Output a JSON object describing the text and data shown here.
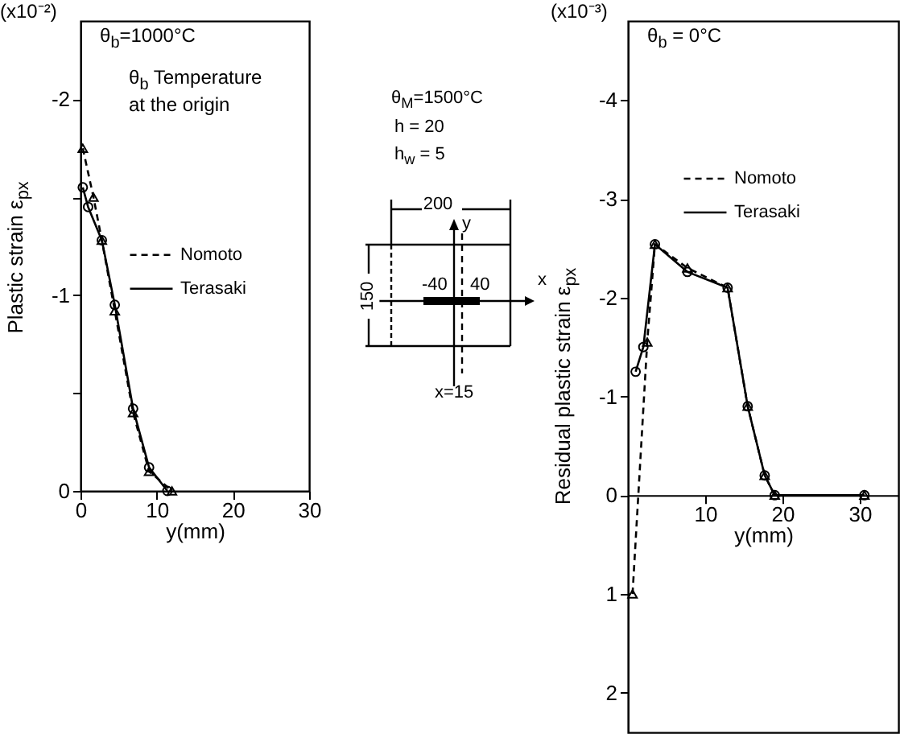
{
  "chart_data": [
    {
      "type": "line",
      "xlabel": "y(mm)",
      "ylabel": "Plastic strain ε$_{px}$",
      "annotations": [
        "(x10⁻²)",
        "θ$_{b}$=1000°C",
        "θ$_{b}$ Temperature at the origin"
      ],
      "xlim": [
        0,
        30
      ],
      "xticks": [
        0,
        10,
        20,
        30
      ],
      "ylim": [
        0,
        -2.4
      ],
      "yticks": [
        {
          "value": 0,
          "label": "0"
        },
        {
          "value": -0.5,
          "label": null
        },
        {
          "value": -1,
          "label": "-1"
        },
        {
          "value": -1.5,
          "label": null
        },
        {
          "value": -2,
          "label": "-2"
        }
      ],
      "grid": false,
      "legend": "right",
      "series": [
        {
          "name": "Nomoto",
          "color": "#000000",
          "line_style": "dashed",
          "marker": "triangle",
          "x": [
            0.3,
            1.7,
            2.8,
            4.5,
            6.9,
            9,
            12
          ],
          "values": [
            -1.75,
            -1.5,
            -1.28,
            -0.92,
            -0.4,
            -0.1,
            0
          ]
        },
        {
          "name": "Terasaki",
          "color": "#000000",
          "line_style": "solid",
          "marker": "circle",
          "x": [
            0.3,
            1,
            2.8,
            4.5,
            6.9,
            9,
            11.4
          ],
          "values": [
            -1.55,
            -1.45,
            -1.28,
            -0.95,
            -0.42,
            -0.12,
            0
          ]
        }
      ]
    },
    {
      "type": "other",
      "annotations": [
        "θ$_{M}$=1500°C",
        "h = 20",
        "h$_{w}$ = 5",
        "200",
        "150",
        "-40",
        "40",
        "x",
        "y",
        "x=15"
      ]
    },
    {
      "type": "line",
      "xlabel": "y(mm)",
      "ylabel": "Residual plastic strain ε$_{px}$",
      "annotations": [
        "(x10⁻³)",
        "θ$_{b}$ = 0°C"
      ],
      "xlim": [
        0,
        35
      ],
      "xticks": [
        10,
        20,
        30
      ],
      "ylim": [
        2.4,
        -4.8
      ],
      "yticks": [
        2,
        1,
        0,
        -1,
        -2,
        -3,
        -4
      ],
      "grid": false,
      "legend": "top",
      "series": [
        {
          "name": "Nomoto",
          "color": "#000000",
          "line_style": "dashed",
          "marker": "triangle",
          "x": [
            0.6,
            2.5,
            3.5,
            7.7,
            12.9,
            15.5,
            17.7,
            19,
            30.6
          ],
          "values": [
            1,
            -1.55,
            -2.54,
            -2.3,
            -2.1,
            -0.9,
            -0.2,
            0,
            0
          ]
        },
        {
          "name": "Terasaki",
          "color": "#000000",
          "line_style": "solid",
          "marker": "circle",
          "x": [
            1,
            2,
            3.5,
            7.7,
            12.9,
            15.5,
            17.7,
            19,
            30.6
          ],
          "values": [
            -1.25,
            -1.5,
            -2.54,
            -2.26,
            -2.1,
            -0.9,
            -0.2,
            0,
            0
          ]
        }
      ]
    }
  ]
}
